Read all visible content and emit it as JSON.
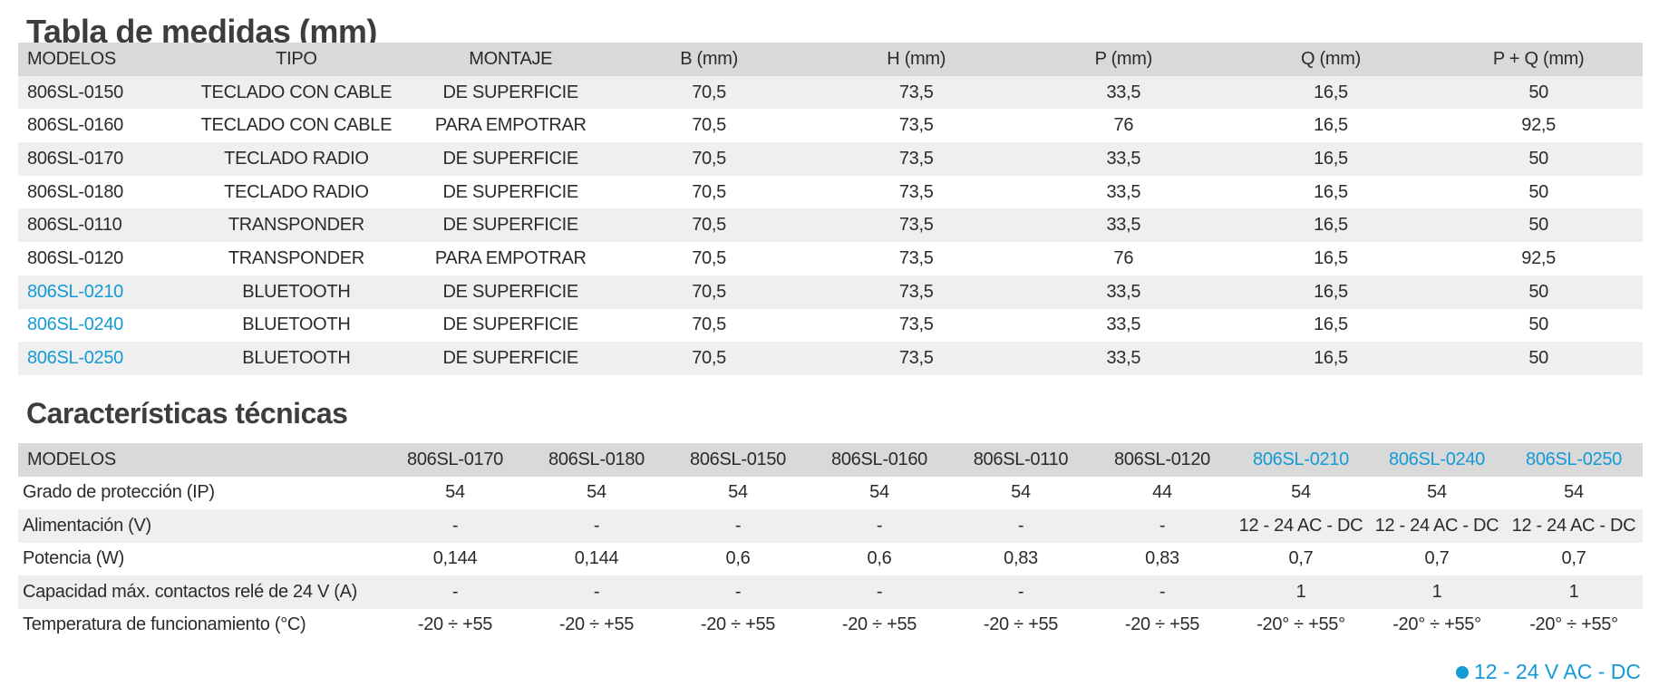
{
  "dimensions": {
    "title": "Tabla de medidas (mm)",
    "headers": [
      "MODELOS",
      "TIPO",
      "MONTAJE",
      "B (mm)",
      "H (mm)",
      "P (mm)",
      "Q (mm)",
      "P + Q (mm)"
    ],
    "rows": [
      {
        "model": "806SL-0150",
        "tipo": "TECLADO CON CABLE",
        "montaje": "DE SUPERFICIE",
        "b": "70,5",
        "h": "73,5",
        "p": "33,5",
        "q": "16,5",
        "pq": "50"
      },
      {
        "model": "806SL-0160",
        "tipo": "TECLADO CON CABLE",
        "montaje": "PARA EMPOTRAR",
        "b": "70,5",
        "h": "73,5",
        "p": "76",
        "q": "16,5",
        "pq": "92,5"
      },
      {
        "model": "806SL-0170",
        "tipo": "TECLADO RADIO",
        "montaje": "DE SUPERFICIE",
        "b": "70,5",
        "h": "73,5",
        "p": "33,5",
        "q": "16,5",
        "pq": "50"
      },
      {
        "model": "806SL-0180",
        "tipo": "TECLADO RADIO",
        "montaje": "DE SUPERFICIE",
        "b": "70,5",
        "h": "73,5",
        "p": "33,5",
        "q": "16,5",
        "pq": "50"
      },
      {
        "model": "806SL-0110",
        "tipo": "TRANSPONDER",
        "montaje": "DE SUPERFICIE",
        "b": "70,5",
        "h": "73,5",
        "p": "33,5",
        "q": "16,5",
        "pq": "50"
      },
      {
        "model": "806SL-0120",
        "tipo": "TRANSPONDER",
        "montaje": "PARA EMPOTRAR",
        "b": "70,5",
        "h": "73,5",
        "p": "76",
        "q": "16,5",
        "pq": "92,5"
      },
      {
        "model": "806SL-0210",
        "tipo": "BLUETOOTH",
        "montaje": "DE SUPERFICIE",
        "b": "70,5",
        "h": "73,5",
        "p": "33,5",
        "q": "16,5",
        "pq": "50"
      },
      {
        "model": "806SL-0240",
        "tipo": "BLUETOOTH",
        "montaje": "DE SUPERFICIE",
        "b": "70,5",
        "h": "73,5",
        "p": "33,5",
        "q": "16,5",
        "pq": "50"
      },
      {
        "model": "806SL-0250",
        "tipo": "BLUETOOTH",
        "montaje": "DE SUPERFICIE",
        "b": "70,5",
        "h": "73,5",
        "p": "33,5",
        "q": "16,5",
        "pq": "50"
      }
    ]
  },
  "specs": {
    "title": "Características técnicas",
    "header_label": "MODELOS",
    "models": [
      "806SL-0170",
      "806SL-0180",
      "806SL-0150",
      "806SL-0160",
      "806SL-0110",
      "806SL-0120",
      "806SL-0210",
      "806SL-0240",
      "806SL-0250"
    ],
    "rows": [
      {
        "label": "Grado de protección (IP)",
        "values": [
          "54",
          "54",
          "54",
          "54",
          "54",
          "44",
          "54",
          "54",
          "54"
        ]
      },
      {
        "label": "Alimentación (V)",
        "values": [
          "-",
          "-",
          "-",
          "-",
          "-",
          "-",
          "12 - 24 AC - DC",
          "12 - 24 AC - DC",
          "12 - 24 AC - DC"
        ]
      },
      {
        "label": "Potencia (W)",
        "values": [
          "0,144",
          "0,144",
          "0,6",
          "0,6",
          "0,83",
          "0,83",
          "0,7",
          "0,7",
          "0,7"
        ]
      },
      {
        "label": "Capacidad máx. contactos relé de 24 V (A)",
        "values": [
          "-",
          "-",
          "-",
          "-",
          "-",
          "-",
          "1",
          "1",
          "1"
        ]
      },
      {
        "label": "Temperatura de funcionamiento (°C)",
        "values": [
          "-20 ÷ +55",
          "-20 ÷ +55",
          "-20 ÷ +55",
          "-20 ÷ +55",
          "-20 ÷ +55",
          "-20 ÷ +55",
          "-20° ÷ +55°",
          "-20° ÷ +55°",
          "-20° ÷ +55°"
        ]
      }
    ]
  },
  "legend": {
    "icon": "bullet-dot-icon",
    "text": "12 - 24 V AC - DC"
  },
  "colors": {
    "accent": "#139bd6",
    "header_bg": "#d9d9d9",
    "row_shade": "#efefef",
    "text": "#2b2b2b"
  }
}
